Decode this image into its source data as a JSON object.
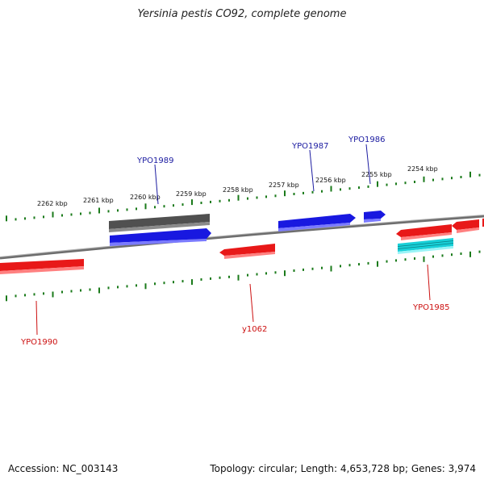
{
  "title": "Yersinia pestis CO92, complete genome",
  "footer": {
    "accession": "Accession: NC_003143",
    "summary": "Topology: circular; Length: 4,653,728 bp; Genes: 3,974"
  },
  "colors": {
    "forward_gene": "#1818e0",
    "reverse_gene": "#e81818",
    "pseudo_gene": "#505050",
    "rna_gene": "#18d0d8",
    "backbone": "#7a7a7a",
    "tick": "#1a7a1a",
    "label_forward": "#1a1aa0",
    "label_reverse": "#cc1010"
  },
  "scale_labels": [
    "2262 kbp",
    "2261 kbp",
    "2260 kbp",
    "2259 kbp",
    "2258 kbp",
    "2257 kbp",
    "2256 kbp",
    "2255 kbp",
    "2254 kbp"
  ],
  "gene_labels": {
    "forward": [
      "YPO1989",
      "YPO1987",
      "YPO1986"
    ],
    "reverse": [
      "YPO1990",
      "y1062",
      "YPO1985"
    ]
  }
}
